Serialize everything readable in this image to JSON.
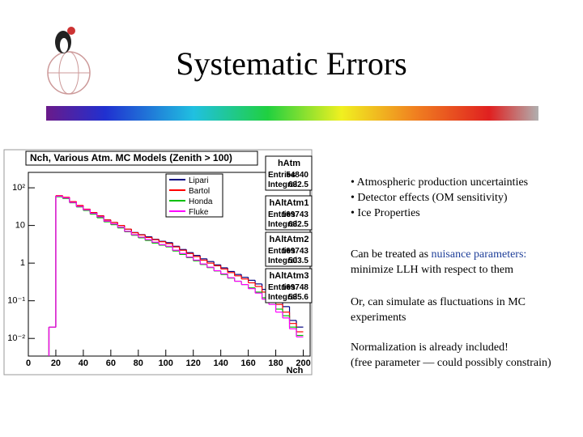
{
  "slide": {
    "title": "Systematic Errors",
    "bullets": [
      "• Atmospheric production uncertainties",
      "• Detector effects (OM sensitivity)",
      "• Ice Properties"
    ],
    "paragraphs": [
      [
        [
          "Can be treated as ",
          {
            "text": "nuisance parameters:",
            "color": "#1f3f99"
          }
        ],
        [
          "minimize LLH with respect to them"
        ]
      ],
      [
        [
          "Or, can simulate as fluctuations in MC"
        ],
        [
          "experiments"
        ]
      ],
      [
        [
          "Normalization is already included!"
        ],
        [
          "(free parameter — could possibly constrain)"
        ]
      ]
    ],
    "stat_boxes": [
      {
        "name": "hAtm",
        "rows": [
          {
            "label": "Entries",
            "value": 54840
          },
          {
            "label": "Integral",
            "value": 632.5
          }
        ]
      },
      {
        "name": "hAltAtm1",
        "rows": [
          {
            "label": "Entries",
            "value": 169743
          },
          {
            "label": "Integral",
            "value": 632.5
          }
        ]
      },
      {
        "name": "hAltAtm2",
        "rows": [
          {
            "label": "Entries",
            "value": 169743
          },
          {
            "label": "Integral",
            "value": 503.5
          }
        ]
      },
      {
        "name": "hAltAtm3",
        "rows": [
          {
            "label": "Entries",
            "value": 169748
          },
          {
            "label": "Integral",
            "value": 535.6
          }
        ]
      }
    ]
  },
  "chart_data": {
    "type": "histogram",
    "title": "Nch, Various Atm. MC Models (Zenith > 100)",
    "x_label": "Nch",
    "bins": [
      15,
      20,
      25,
      30,
      35,
      40,
      45,
      50,
      55,
      60,
      65,
      70,
      75,
      80,
      85,
      90,
      95,
      100,
      105,
      110,
      115,
      120,
      125,
      130,
      135,
      140,
      145,
      150,
      155,
      160,
      165,
      170,
      175,
      180,
      185,
      190,
      195,
      200
    ],
    "series": [
      {
        "name": "Lipari",
        "color": "#000080",
        "values": [
          0.02,
          60,
          55,
          42,
          33,
          27,
          22,
          18,
          14,
          12,
          10,
          8,
          6.5,
          5.7,
          5,
          4.3,
          3.8,
          3.5,
          2.8,
          2.3,
          1.9,
          1.6,
          1.3,
          1.1,
          0.9,
          0.75,
          0.6,
          0.5,
          0.42,
          0.35,
          0.28,
          0.2,
          0.15,
          0.1,
          0.07,
          0.03,
          0.02
        ]
      },
      {
        "name": "Bartol",
        "color": "#ff0000",
        "values": [
          0.02,
          62,
          56,
          43,
          34,
          27,
          22,
          18,
          14,
          12,
          10,
          8,
          6.4,
          5.6,
          4.8,
          4.2,
          3.7,
          3.3,
          2.7,
          2.2,
          1.8,
          1.5,
          1.2,
          1.0,
          0.85,
          0.7,
          0.56,
          0.46,
          0.38,
          0.3,
          0.24,
          0.17,
          0.12,
          0.08,
          0.05,
          0.025,
          0.015
        ]
      },
      {
        "name": "Honda",
        "color": "#00c000",
        "values": [
          0.02,
          58,
          52,
          40,
          31,
          25,
          20,
          16,
          12.5,
          10.5,
          8.6,
          6.8,
          5.5,
          4.7,
          4,
          3.4,
          3,
          2.7,
          2.1,
          1.7,
          1.4,
          1.15,
          0.92,
          0.76,
          0.62,
          0.5,
          0.4,
          0.33,
          0.27,
          0.22,
          0.17,
          0.12,
          0.09,
          0.06,
          0.04,
          0.02,
          0.012
        ]
      },
      {
        "name": "Fluke",
        "color": "#ff00ff",
        "values": [
          0.02,
          60,
          54,
          41,
          32,
          26,
          21,
          17,
          13,
          11,
          9,
          7,
          5.7,
          4.9,
          4.2,
          3.6,
          3.1,
          2.8,
          2.2,
          1.8,
          1.45,
          1.2,
          0.95,
          0.78,
          0.63,
          0.52,
          0.41,
          0.33,
          0.27,
          0.21,
          0.16,
          0.11,
          0.08,
          0.05,
          0.035,
          0.018,
          0.011
        ]
      }
    ],
    "xlim": [
      0,
      205
    ],
    "xticks": [
      0,
      20,
      40,
      60,
      80,
      100,
      120,
      140,
      160,
      180,
      200
    ],
    "ylim": [
      0.0034,
      257
    ],
    "yticks": [
      {
        "value": 100,
        "label": "10²"
      },
      10,
      1,
      {
        "value": 0.1,
        "label": "10⁻¹"
      },
      {
        "value": 0.01,
        "label": "10⁻²"
      }
    ],
    "log_y": true
  }
}
